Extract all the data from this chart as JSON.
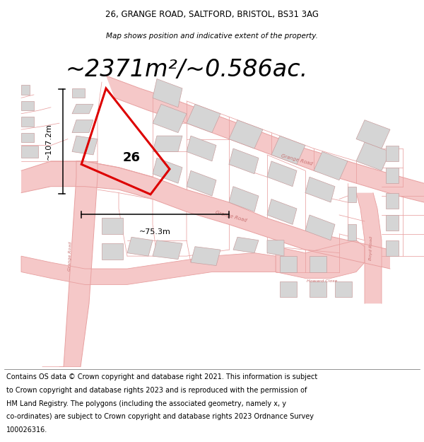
{
  "title_line1": "26, GRANGE ROAD, SALTFORD, BRISTOL, BS31 3AG",
  "title_line2": "Map shows position and indicative extent of the property.",
  "area_text": "~2371m²/~0.586ac.",
  "dim_vertical": "~107.2m",
  "dim_horizontal": "~75.3m",
  "label_26": "26",
  "plot_color": "#dd0000",
  "road_fill": "#f5c8c8",
  "road_edge": "#e8a0a0",
  "building_fill": "#d5d5d5",
  "building_edge": "#c8a0a0",
  "prop_line": "#e8a0a0",
  "title_fontsize": 8.5,
  "area_fontsize": 24,
  "label_fontsize": 13,
  "dim_fontsize": 8,
  "road_label_fontsize": 5,
  "footer_fontsize": 7.0,
  "footer_lines": [
    "Contains OS data © Crown copyright and database right 2021. This information is subject",
    "to Crown copyright and database rights 2023 and is reproduced with the permission of",
    "HM Land Registry. The polygons (including the associated geometry, namely x, y",
    "co-ordinates) are subject to Crown copyright and database rights 2023 Ordnance Survey",
    "100026316."
  ]
}
